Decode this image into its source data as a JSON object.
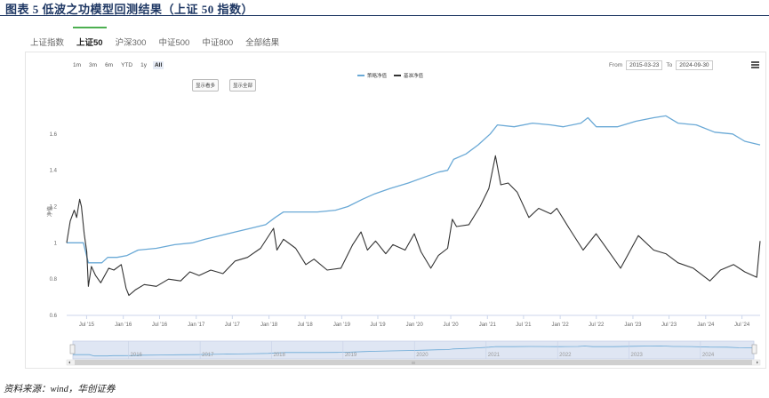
{
  "figure": {
    "title": "图表 5   低波之功模型回测结果（上证 50 指数）",
    "source": "资料来源：wind，华创证券"
  },
  "tabs": [
    {
      "label": "上证指数",
      "active": false
    },
    {
      "label": "上证50",
      "active": true
    },
    {
      "label": "沪深300",
      "active": false
    },
    {
      "label": "中证500",
      "active": false
    },
    {
      "label": "中证800",
      "active": false
    },
    {
      "label": "全部结果",
      "active": false
    }
  ],
  "range_buttons": [
    {
      "label": "1m",
      "active": false
    },
    {
      "label": "3m",
      "active": false
    },
    {
      "label": "6m",
      "active": false
    },
    {
      "label": "YTD",
      "active": false
    },
    {
      "label": "1y",
      "active": false
    },
    {
      "label": "All",
      "active": true
    }
  ],
  "date_range": {
    "from_label": "From",
    "from": "2015-03-23",
    "to_label": "To",
    "to": "2024-09-30"
  },
  "buttons": {
    "show_more": "显示看多",
    "show_all": "显示全部"
  },
  "colors": {
    "strategy": "#6aa9d6",
    "benchmark": "#333333",
    "accent": "#4caf50",
    "navigator_fill": "#dfe6f3"
  },
  "chart_data": {
    "type": "line",
    "title": "",
    "xlabel": "",
    "ylabel": "净值",
    "ylim": [
      0.6,
      1.8
    ],
    "xlim": [
      "2015-03-23",
      "2024-09-30"
    ],
    "yticks": [
      0.6,
      0.8,
      1,
      1.2,
      1.4,
      1.6
    ],
    "xticks": [
      {
        "date": "2015-07-01",
        "label": "Jul '15"
      },
      {
        "date": "2016-01-01",
        "label": "Jan '16"
      },
      {
        "date": "2016-07-01",
        "label": "Jul '16"
      },
      {
        "date": "2017-01-01",
        "label": "Jan '17"
      },
      {
        "date": "2017-07-01",
        "label": "Jul '17"
      },
      {
        "date": "2018-01-01",
        "label": "Jan '18"
      },
      {
        "date": "2018-07-01",
        "label": "Jul '18"
      },
      {
        "date": "2019-01-01",
        "label": "Jan '19"
      },
      {
        "date": "2019-07-01",
        "label": "Jul '19"
      },
      {
        "date": "2020-01-01",
        "label": "Jan '20"
      },
      {
        "date": "2020-07-01",
        "label": "Jul '20"
      },
      {
        "date": "2021-01-01",
        "label": "Jan '21"
      },
      {
        "date": "2021-07-01",
        "label": "Jul '21"
      },
      {
        "date": "2022-01-01",
        "label": "Jan '22"
      },
      {
        "date": "2022-07-01",
        "label": "Jul '22"
      },
      {
        "date": "2023-01-01",
        "label": "Jan '23"
      },
      {
        "date": "2023-07-01",
        "label": "Jul '23"
      },
      {
        "date": "2024-01-01",
        "label": "Jan '24"
      },
      {
        "date": "2024-07-01",
        "label": "Jul '24"
      }
    ],
    "navigator_labels": [
      {
        "date": "2016-01-01",
        "label": "2016"
      },
      {
        "date": "2017-01-01",
        "label": "2017"
      },
      {
        "date": "2018-01-01",
        "label": "2018"
      },
      {
        "date": "2019-01-01",
        "label": "2019"
      },
      {
        "date": "2020-01-01",
        "label": "2020"
      },
      {
        "date": "2021-01-01",
        "label": "2021"
      },
      {
        "date": "2022-01-01",
        "label": "2022"
      },
      {
        "date": "2023-01-01",
        "label": "2023"
      },
      {
        "date": "2024-01-01",
        "label": "2024"
      }
    ],
    "grid": false,
    "legend_position": "top-center",
    "series": [
      {
        "name": "策略净值",
        "color": "#6aa9d6",
        "points": [
          [
            "2015-03-23",
            1.0
          ],
          [
            "2015-06-15",
            1.0
          ],
          [
            "2015-07-10",
            0.89
          ],
          [
            "2015-09-15",
            0.89
          ],
          [
            "2015-10-15",
            0.92
          ],
          [
            "2015-12-01",
            0.92
          ],
          [
            "2016-01-20",
            0.93
          ],
          [
            "2016-03-15",
            0.96
          ],
          [
            "2016-06-15",
            0.97
          ],
          [
            "2016-09-15",
            0.99
          ],
          [
            "2016-12-15",
            1.0
          ],
          [
            "2017-02-15",
            1.02
          ],
          [
            "2017-05-01",
            1.04
          ],
          [
            "2017-07-15",
            1.06
          ],
          [
            "2017-10-01",
            1.08
          ],
          [
            "2017-12-15",
            1.1
          ],
          [
            "2018-02-01",
            1.14
          ],
          [
            "2018-03-15",
            1.17
          ],
          [
            "2018-06-01",
            1.17
          ],
          [
            "2018-09-01",
            1.17
          ],
          [
            "2018-12-01",
            1.18
          ],
          [
            "2019-02-01",
            1.2
          ],
          [
            "2019-04-15",
            1.24
          ],
          [
            "2019-06-15",
            1.27
          ],
          [
            "2019-09-01",
            1.3
          ],
          [
            "2019-12-01",
            1.33
          ],
          [
            "2020-02-15",
            1.36
          ],
          [
            "2020-05-01",
            1.39
          ],
          [
            "2020-06-15",
            1.4
          ],
          [
            "2020-07-15",
            1.46
          ],
          [
            "2020-09-15",
            1.49
          ],
          [
            "2020-11-15",
            1.54
          ],
          [
            "2021-01-15",
            1.6
          ],
          [
            "2021-02-20",
            1.65
          ],
          [
            "2021-05-15",
            1.64
          ],
          [
            "2021-08-15",
            1.66
          ],
          [
            "2021-11-15",
            1.65
          ],
          [
            "2022-01-15",
            1.64
          ],
          [
            "2022-04-15",
            1.66
          ],
          [
            "2022-05-20",
            1.69
          ],
          [
            "2022-07-01",
            1.64
          ],
          [
            "2022-10-15",
            1.64
          ],
          [
            "2023-01-15",
            1.67
          ],
          [
            "2023-04-15",
            1.69
          ],
          [
            "2023-06-15",
            1.7
          ],
          [
            "2023-08-15",
            1.66
          ],
          [
            "2023-11-15",
            1.65
          ],
          [
            "2024-02-15",
            1.61
          ],
          [
            "2024-05-15",
            1.6
          ],
          [
            "2024-07-15",
            1.56
          ],
          [
            "2024-09-30",
            1.54
          ]
        ]
      },
      {
        "name": "基准净值",
        "color": "#333333",
        "points": [
          [
            "2015-03-23",
            1.0
          ],
          [
            "2015-04-10",
            1.12
          ],
          [
            "2015-04-30",
            1.18
          ],
          [
            "2015-05-12",
            1.14
          ],
          [
            "2015-05-27",
            1.24
          ],
          [
            "2015-06-05",
            1.2
          ],
          [
            "2015-06-19",
            1.05
          ],
          [
            "2015-07-02",
            0.95
          ],
          [
            "2015-07-10",
            0.76
          ],
          [
            "2015-07-25",
            0.87
          ],
          [
            "2015-08-15",
            0.82
          ],
          [
            "2015-09-10",
            0.78
          ],
          [
            "2015-10-20",
            0.86
          ],
          [
            "2015-11-15",
            0.85
          ],
          [
            "2015-12-22",
            0.88
          ],
          [
            "2016-01-15",
            0.75
          ],
          [
            "2016-01-29",
            0.71
          ],
          [
            "2016-03-01",
            0.74
          ],
          [
            "2016-04-15",
            0.77
          ],
          [
            "2016-06-15",
            0.76
          ],
          [
            "2016-08-15",
            0.8
          ],
          [
            "2016-10-15",
            0.79
          ],
          [
            "2016-11-30",
            0.84
          ],
          [
            "2017-01-15",
            0.82
          ],
          [
            "2017-03-15",
            0.85
          ],
          [
            "2017-05-15",
            0.83
          ],
          [
            "2017-07-15",
            0.9
          ],
          [
            "2017-09-15",
            0.92
          ],
          [
            "2017-11-20",
            0.97
          ],
          [
            "2018-01-24",
            1.08
          ],
          [
            "2018-02-10",
            0.96
          ],
          [
            "2018-03-15",
            1.02
          ],
          [
            "2018-05-15",
            0.97
          ],
          [
            "2018-07-05",
            0.88
          ],
          [
            "2018-08-15",
            0.91
          ],
          [
            "2018-10-20",
            0.85
          ],
          [
            "2018-12-28",
            0.86
          ],
          [
            "2019-02-25",
            0.99
          ],
          [
            "2019-04-08",
            1.06
          ],
          [
            "2019-05-10",
            0.96
          ],
          [
            "2019-06-20",
            1.01
          ],
          [
            "2019-08-10",
            0.94
          ],
          [
            "2019-09-15",
            0.99
          ],
          [
            "2019-11-15",
            0.96
          ],
          [
            "2019-12-31",
            1.05
          ],
          [
            "2020-02-03",
            0.95
          ],
          [
            "2020-03-23",
            0.86
          ],
          [
            "2020-04-30",
            0.93
          ],
          [
            "2020-06-15",
            0.97
          ],
          [
            "2020-07-09",
            1.13
          ],
          [
            "2020-07-30",
            1.09
          ],
          [
            "2020-09-30",
            1.1
          ],
          [
            "2020-11-25",
            1.2
          ],
          [
            "2021-01-08",
            1.3
          ],
          [
            "2021-02-10",
            1.48
          ],
          [
            "2021-03-09",
            1.32
          ],
          [
            "2021-04-15",
            1.33
          ],
          [
            "2021-05-30",
            1.28
          ],
          [
            "2021-07-28",
            1.14
          ],
          [
            "2021-09-15",
            1.19
          ],
          [
            "2021-11-15",
            1.16
          ],
          [
            "2021-12-15",
            1.19
          ],
          [
            "2022-02-15",
            1.08
          ],
          [
            "2022-04-26",
            0.96
          ],
          [
            "2022-06-30",
            1.05
          ],
          [
            "2022-08-15",
            0.98
          ],
          [
            "2022-10-31",
            0.86
          ],
          [
            "2023-01-28",
            1.04
          ],
          [
            "2023-04-15",
            0.96
          ],
          [
            "2023-06-15",
            0.94
          ],
          [
            "2023-08-15",
            0.89
          ],
          [
            "2023-10-31",
            0.86
          ],
          [
            "2024-01-22",
            0.79
          ],
          [
            "2024-03-15",
            0.85
          ],
          [
            "2024-05-20",
            0.88
          ],
          [
            "2024-07-15",
            0.84
          ],
          [
            "2024-09-13",
            0.81
          ],
          [
            "2024-09-30",
            1.01
          ]
        ]
      }
    ]
  }
}
